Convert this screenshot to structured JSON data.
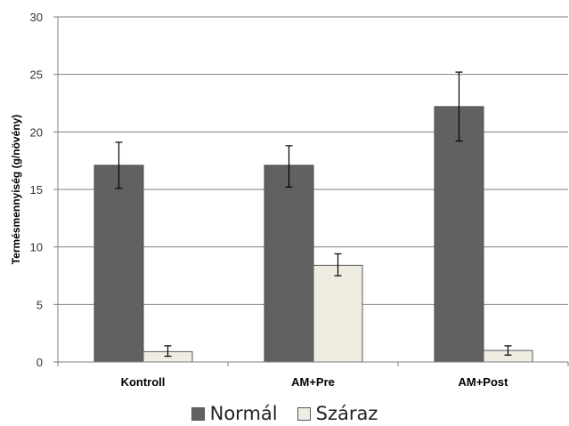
{
  "chart_data": {
    "type": "bar",
    "title": "",
    "xlabel": "",
    "ylabel": "Termésmennyiség (g/növény)",
    "ylim": [
      0,
      30
    ],
    "yticks": [
      0,
      5,
      10,
      15,
      20,
      25,
      30
    ],
    "grid": true,
    "legend_position": "bottom",
    "categories": [
      "Kontroll",
      "AM+Pre",
      "AM+Post"
    ],
    "series": [
      {
        "name": "Normál",
        "color": "#616161",
        "values": [
          17.1,
          17.1,
          22.2
        ],
        "err_low": [
          15.1,
          15.2,
          19.2
        ],
        "err_high": [
          19.1,
          18.8,
          25.2
        ]
      },
      {
        "name": "Száraz",
        "color": "#efece2",
        "values": [
          0.9,
          8.4,
          1.0
        ],
        "err_low": [
          0.5,
          7.5,
          0.6
        ],
        "err_high": [
          1.4,
          9.4,
          1.4
        ]
      }
    ]
  }
}
